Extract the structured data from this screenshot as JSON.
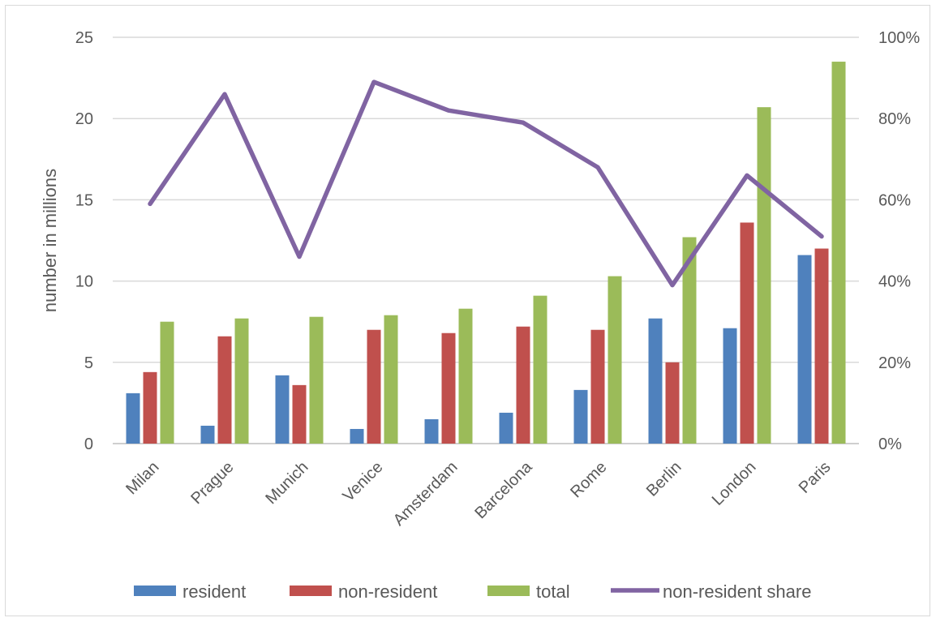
{
  "chart_data": {
    "type": "bar",
    "categories": [
      "Milan",
      "Prague",
      "Munich",
      "Venice",
      "Amsterdam",
      "Barcelona",
      "Rome",
      "Berlin",
      "London",
      "Paris"
    ],
    "series": [
      {
        "name": "resident",
        "type": "bar",
        "axis": "left",
        "color": "#4f81bd",
        "values": [
          3.1,
          1.1,
          4.2,
          0.9,
          1.5,
          1.9,
          3.3,
          7.7,
          7.1,
          11.6
        ]
      },
      {
        "name": "non-resident",
        "type": "bar",
        "axis": "left",
        "color": "#c0504d",
        "values": [
          4.4,
          6.6,
          3.6,
          7.0,
          6.8,
          7.2,
          7.0,
          5.0,
          13.6,
          12.0
        ]
      },
      {
        "name": "total",
        "type": "bar",
        "axis": "left",
        "color": "#9bbb59",
        "values": [
          7.5,
          7.7,
          7.8,
          7.9,
          8.3,
          9.1,
          10.3,
          12.7,
          20.7,
          23.5
        ]
      },
      {
        "name": "non-resident share",
        "type": "line",
        "axis": "right",
        "color": "#8064a2",
        "values": [
          0.59,
          0.86,
          0.46,
          0.89,
          0.82,
          0.79,
          0.68,
          0.39,
          0.66,
          0.51
        ]
      }
    ],
    "ylabel": "number in millions",
    "ylim": [
      0,
      25
    ],
    "y_ticks": [
      "0",
      "5",
      "10",
      "15",
      "20",
      "25"
    ],
    "y2lim": [
      0,
      1
    ],
    "y2_ticks": [
      "0%",
      "20%",
      "40%",
      "60%",
      "80%",
      "100%"
    ],
    "grid": true,
    "legend_position": "bottom",
    "x_tick_rotation": -45
  }
}
